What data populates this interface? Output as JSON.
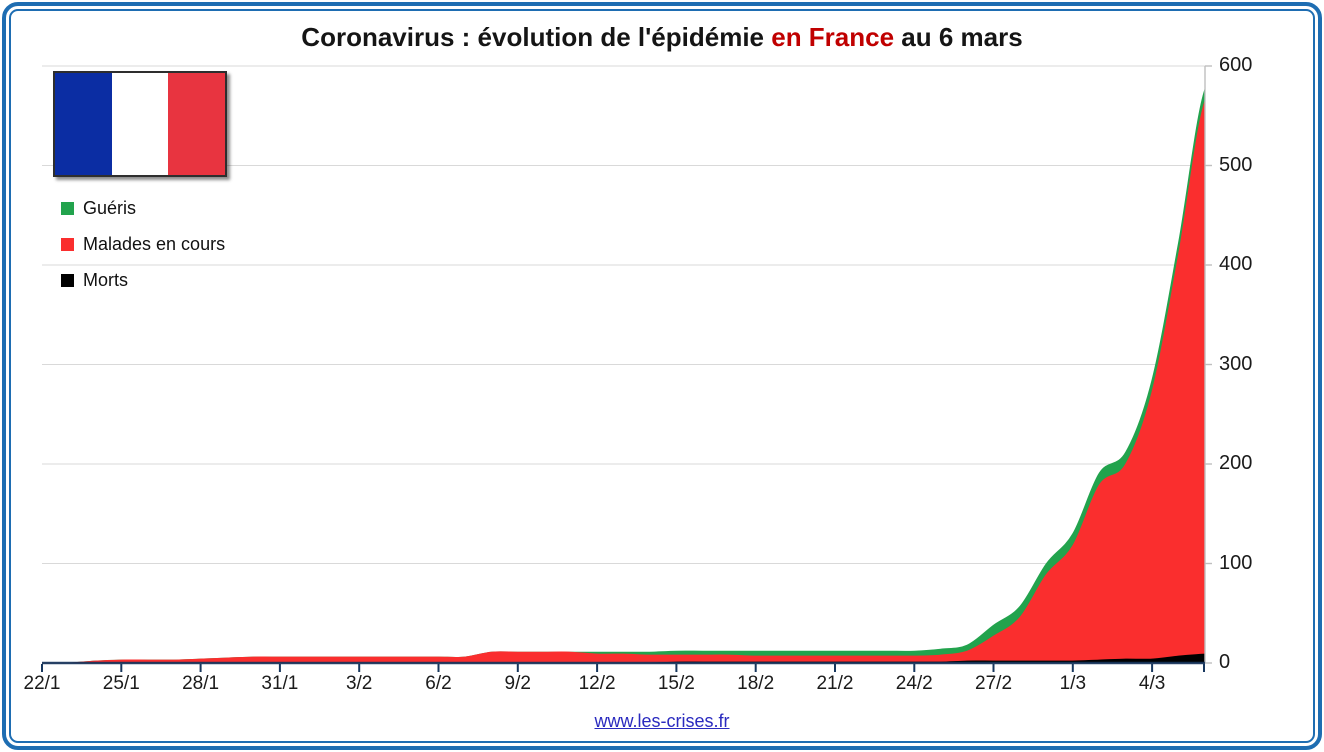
{
  "title": {
    "part1": "Coronavirus : évolution de l'épidémie ",
    "highlight": "en France",
    "part2": " au 6 mars",
    "highlight_color": "#C00000"
  },
  "legend": {
    "items": [
      {
        "label": "Guéris",
        "color": "#22A34D"
      },
      {
        "label": "Malades en cours",
        "color": "#FA2E2E"
      },
      {
        "label": "Morts",
        "color": "#000000"
      }
    ]
  },
  "flag": {
    "name": "drapeau-france",
    "colors": [
      "#0B2DA3",
      "#FFFFFF",
      "#E83440"
    ]
  },
  "footer": {
    "link_text": "www.les-crises.fr"
  },
  "colors": {
    "frame_blue": "#1E6DB2",
    "x_axis": "#17375E",
    "right_axis": "#BFBFBF",
    "gridline": "#D9D9D9",
    "link_blue": "#2A2ABF",
    "title_highlight": "#C00000"
  },
  "chart_data": {
    "type": "area",
    "stacked": true,
    "smoothed": true,
    "title": "Coronavirus : évolution de l'épidémie en France au 6 mars",
    "xlabel": "",
    "ylabel": "",
    "ylim": [
      0,
      600
    ],
    "y_ticks": [
      0,
      100,
      200,
      300,
      400,
      500,
      600
    ],
    "grid": true,
    "legend_position": "top-left",
    "y_axis_side": "right",
    "x": [
      "22/1",
      "23/1",
      "24/1",
      "25/1",
      "26/1",
      "27/1",
      "28/1",
      "29/1",
      "30/1",
      "31/1",
      "1/2",
      "2/2",
      "3/2",
      "4/2",
      "5/2",
      "6/2",
      "7/2",
      "8/2",
      "9/2",
      "10/2",
      "11/2",
      "12/2",
      "13/2",
      "14/2",
      "15/2",
      "16/2",
      "17/2",
      "18/2",
      "19/2",
      "20/2",
      "21/2",
      "22/2",
      "23/2",
      "24/2",
      "25/2",
      "26/2",
      "27/2",
      "28/2",
      "29/2",
      "1/3",
      "2/3",
      "3/3",
      "4/3",
      "5/3",
      "6/3"
    ],
    "x_ticks": [
      {
        "i": 0,
        "label": "22/1"
      },
      {
        "i": 3,
        "label": "25/1"
      },
      {
        "i": 6,
        "label": "28/1"
      },
      {
        "i": 9,
        "label": "31/1"
      },
      {
        "i": 12,
        "label": "3/2"
      },
      {
        "i": 15,
        "label": "6/2"
      },
      {
        "i": 18,
        "label": "9/2"
      },
      {
        "i": 21,
        "label": "12/2"
      },
      {
        "i": 24,
        "label": "15/2"
      },
      {
        "i": 27,
        "label": "18/2"
      },
      {
        "i": 30,
        "label": "21/2"
      },
      {
        "i": 33,
        "label": "24/2"
      },
      {
        "i": 36,
        "label": "27/2"
      },
      {
        "i": 39,
        "label": "1/3"
      },
      {
        "i": 42,
        "label": "4/3"
      }
    ],
    "series": [
      {
        "name": "Morts",
        "color": "#000000",
        "values": [
          0,
          0,
          0,
          0,
          0,
          0,
          0,
          0,
          0,
          0,
          0,
          0,
          0,
          0,
          0,
          0,
          0,
          0,
          0,
          0,
          0,
          0,
          0,
          0,
          1,
          1,
          1,
          1,
          1,
          1,
          1,
          1,
          1,
          1,
          1,
          2,
          2,
          2,
          2,
          2,
          3,
          4,
          4,
          7,
          9
        ]
      },
      {
        "name": "Malades en cours",
        "color": "#FA2E2E",
        "values": [
          0,
          0,
          2,
          3,
          3,
          3,
          4,
          5,
          6,
          6,
          6,
          6,
          6,
          6,
          6,
          6,
          6,
          11,
          11,
          11,
          11,
          9,
          9,
          8,
          7,
          7,
          7,
          6,
          6,
          6,
          6,
          6,
          6,
          6,
          7,
          10,
          25,
          44,
          87,
          116,
          176,
          196,
          269,
          404,
          556
        ]
      },
      {
        "name": "Guéris",
        "color": "#22A34D",
        "values": [
          0,
          0,
          0,
          0,
          0,
          0,
          0,
          0,
          0,
          0,
          0,
          0,
          0,
          0,
          0,
          0,
          0,
          0,
          0,
          0,
          0,
          2,
          2,
          3,
          4,
          4,
          4,
          5,
          5,
          5,
          5,
          5,
          5,
          5,
          6,
          6,
          11,
          11,
          11,
          12,
          12,
          12,
          12,
          12,
          12
        ]
      }
    ],
    "stack_totals_last_day": {
      "date": "6/3",
      "total": 577,
      "morts": 9,
      "gueris": 12,
      "malades_en_cours": 556
    }
  }
}
